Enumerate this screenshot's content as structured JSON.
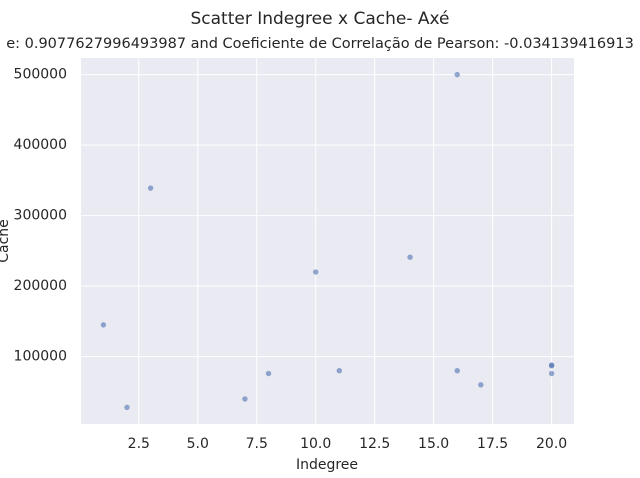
{
  "chart_data": {
    "type": "scatter",
    "title": "Scatter Indegree x Cache- Axé",
    "subtitle": "e: 0.9077627996493987 and Coeficiente de Correlação de Pearson: -0.034139416913",
    "x_label": "Indegree",
    "y_label": "Cache",
    "x": [
      1,
      2,
      3,
      7,
      8,
      10,
      11,
      14,
      16,
      16,
      17,
      20,
      20,
      20
    ],
    "values": [
      145000,
      28000,
      339000,
      40000,
      76000,
      220000,
      80000,
      241000,
      500000,
      80000,
      60000,
      88000,
      76000,
      87000
    ],
    "color": "#4c72b0",
    "xlim": [
      0.05,
      20.95
    ],
    "xticks": [
      2.5,
      {
        "value": 5,
        "label": "5.0"
      },
      7.5,
      {
        "value": 10,
        "label": "10.0"
      },
      12.5,
      {
        "value": 15,
        "label": "15.0"
      },
      17.5,
      {
        "value": 20,
        "label": "20.0"
      }
    ],
    "ylim": [
      4400,
      523600
    ],
    "yticks": [
      100000,
      200000,
      300000,
      400000,
      500000
    ],
    "grid": true
  }
}
